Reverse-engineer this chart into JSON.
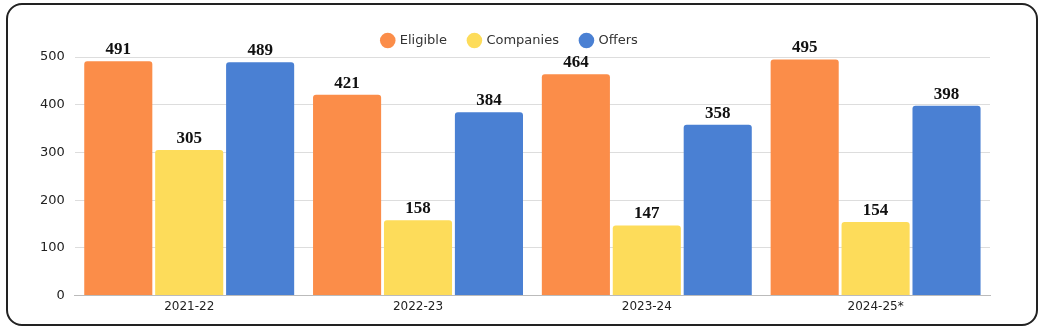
{
  "chart_data": {
    "type": "bar",
    "categories": [
      "2021-22",
      "2022-23",
      "2023-24",
      "2024-25*"
    ],
    "series": [
      {
        "name": "Eligible",
        "color": "#fb8d49",
        "values": [
          491,
          421,
          464,
          495
        ]
      },
      {
        "name": "Companies",
        "color": "#fddc5a",
        "values": [
          305,
          158,
          147,
          154
        ]
      },
      {
        "name": "Offers",
        "color": "#4a80d3",
        "values": [
          489,
          384,
          358,
          398
        ]
      }
    ],
    "ylim": [
      0,
      500
    ],
    "yticks": [
      0,
      100,
      200,
      300,
      400,
      500
    ],
    "grid": "y",
    "legend": "top",
    "data_labels": true
  }
}
